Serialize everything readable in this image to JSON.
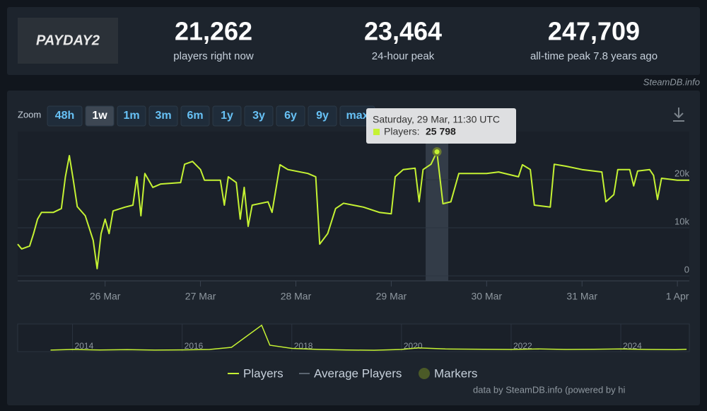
{
  "header": {
    "logo": "PAYDAY2",
    "stats": [
      {
        "value": "21,262",
        "label": "players right now"
      },
      {
        "value": "23,464",
        "label": "24-hour peak"
      },
      {
        "value": "247,709",
        "label": "all-time peak 7.8 years ago"
      }
    ]
  },
  "source": "SteamDB.info",
  "zoom": {
    "label": "Zoom",
    "options": [
      "48h",
      "1w",
      "1m",
      "3m",
      "6m",
      "1y",
      "3y",
      "6y",
      "9y",
      "max"
    ],
    "active": "1w"
  },
  "chart_data": {
    "type": "line",
    "x": [
      "25 Mar 02:00",
      "25 Mar 03:00",
      "25 Mar 05:00",
      "25 Mar 06:00",
      "25 Mar 07:00",
      "25 Mar 08:00",
      "25 Mar 11:00",
      "25 Mar 13:00",
      "25 Mar 14:00",
      "25 Mar 15:00",
      "25 Mar 16:00",
      "25 Mar 17:00",
      "25 Mar 19:00",
      "25 Mar 21:00",
      "25 Mar 22:00",
      "25 Mar 23:00",
      "26 Mar 00:00",
      "26 Mar 01:00",
      "26 Mar 02:00",
      "26 Mar 05:00",
      "26 Mar 07:00",
      "26 Mar 08:00",
      "26 Mar 09:00",
      "26 Mar 10:00",
      "26 Mar 12:00",
      "26 Mar 14:00",
      "26 Mar 19:00",
      "26 Mar 20:00",
      "26 Mar 22:00",
      "27 Mar 00:00",
      "27 Mar 01:00",
      "27 Mar 05:00",
      "27 Mar 06:00",
      "27 Mar 07:00",
      "27 Mar 09:00",
      "27 Mar 10:00",
      "27 Mar 11:00",
      "27 Mar 12:00",
      "27 Mar 13:00",
      "27 Mar 17:00",
      "27 Mar 18:00",
      "27 Mar 20:00",
      "27 Mar 22:00",
      "28 Mar 03:00",
      "28 Mar 05:00",
      "28 Mar 06:00",
      "28 Mar 08:00",
      "28 Mar 10:00",
      "28 Mar 12:00",
      "28 Mar 17:00",
      "28 Mar 21:00",
      "29 Mar 00:00",
      "29 Mar 01:00",
      "29 Mar 03:00",
      "29 Mar 06:00",
      "29 Mar 07:00",
      "29 Mar 08:00",
      "29 Mar 10:00",
      "29 Mar 11:30",
      "29 Mar 13:00",
      "29 Mar 15:00",
      "29 Mar 17:00",
      "30 Mar 00:00",
      "30 Mar 03:00",
      "30 Mar 08:00",
      "30 Mar 09:00",
      "30 Mar 11:00",
      "30 Mar 12:00",
      "30 Mar 16:00",
      "30 Mar 17:00",
      "30 Mar 20:00",
      "31 Mar 00:00",
      "31 Mar 05:00",
      "31 Mar 06:00",
      "31 Mar 08:00",
      "31 Mar 09:00",
      "31 Mar 12:00",
      "31 Mar 13:00",
      "31 Mar 14:00",
      "31 Mar 17:00",
      "31 Mar 18:00",
      "31 Mar 19:00",
      "31 Mar 20:00",
      "1 Apr 00:00",
      "1 Apr 03:00"
    ],
    "series": [
      {
        "name": "Players",
        "color": "#c5f233",
        "values": [
          6600,
          5600,
          6200,
          8800,
          11800,
          13200,
          13200,
          14000,
          20600,
          25000,
          19900,
          14400,
          12500,
          7400,
          1500,
          8800,
          11800,
          8800,
          13500,
          14300,
          14700,
          20600,
          12500,
          21300,
          18400,
          19100,
          19400,
          23200,
          23800,
          22100,
          19900,
          19900,
          14700,
          20600,
          19400,
          11800,
          18400,
          10300,
          14700,
          15400,
          13200,
          23100,
          22100,
          21300,
          20600,
          6600,
          8800,
          14000,
          15100,
          14300,
          13200,
          12900,
          20600,
          22100,
          22400,
          15400,
          22100,
          23200,
          25798,
          15000,
          15400,
          21300,
          21300,
          21600,
          20600,
          23100,
          22100,
          14700,
          14300,
          23200,
          22800,
          22100,
          21600,
          15400,
          16900,
          22100,
          22100,
          18700,
          21800,
          22100,
          20900,
          15900,
          20300,
          19900,
          19900
        ]
      }
    ],
    "legend_extra": [
      {
        "name": "Average Players",
        "color": "#5b6570"
      },
      {
        "name": "Markers",
        "color": "#4b5a27"
      }
    ],
    "xlim": [
      "25 Mar 02:00",
      "1 Apr 03:00"
    ],
    "xticks": [
      "26 Mar",
      "27 Mar",
      "28 Mar",
      "29 Mar",
      "30 Mar",
      "31 Mar",
      "1 Apr"
    ],
    "ylim": [
      0,
      30000
    ],
    "yticks": [
      0,
      {
        "value": 10000,
        "label": "10k"
      },
      {
        "value": 20000,
        "label": "20k"
      }
    ],
    "grid": true,
    "tooltip": {
      "title": "Saturday, 29 Mar, 11:30 UTC",
      "label": "Players:",
      "value_label": "25 798"
    },
    "navigator": {
      "x": [
        2013.6,
        2014.0,
        2014.5,
        2015.0,
        2015.5,
        2016.0,
        2016.5,
        2016.9,
        2017.45,
        2017.6,
        2018.0,
        2018.5,
        2019.0,
        2019.5,
        2020.0,
        2020.3,
        2020.8,
        2021.5,
        2022.0,
        2022.5,
        2023.0,
        2023.5,
        2024.0,
        2024.5,
        2025.0,
        2025.2
      ],
      "values": [
        14000,
        20000,
        15000,
        18000,
        14000,
        16000,
        20000,
        40000,
        247709,
        60000,
        30000,
        20000,
        15000,
        13000,
        20000,
        35000,
        25000,
        22000,
        20000,
        25000,
        20000,
        22000,
        25000,
        20000,
        18000,
        22000
      ],
      "xlim": [
        2013,
        2025.25
      ],
      "ylim": [
        0,
        260000
      ],
      "xticks": [
        2014,
        2016,
        2018,
        2020,
        2022,
        2024
      ]
    }
  },
  "footer": "data by SteamDB.info (powered by hi"
}
